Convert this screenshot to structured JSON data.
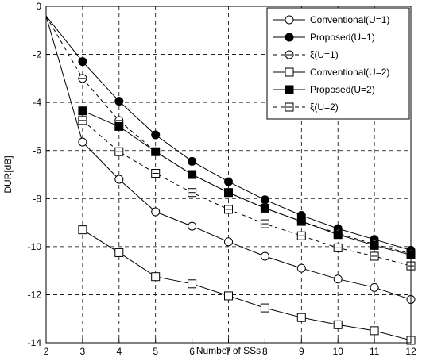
{
  "chart_data": {
    "type": "line",
    "xlabel": "Number of SSs",
    "ylabel": "DUR[dB]",
    "xlim": [
      2,
      12
    ],
    "ylim": [
      -14,
      0
    ],
    "xticks": [
      2,
      3,
      4,
      5,
      6,
      7,
      8,
      9,
      10,
      11,
      12
    ],
    "yticks": [
      0,
      -2,
      -4,
      -6,
      -8,
      -10,
      -12,
      -14
    ],
    "grid": true,
    "grid_style": "dashed",
    "legend_position": "top-right",
    "series": [
      {
        "name": "Conventional(U=1)",
        "line": "solid",
        "marker": "circle",
        "filled": false,
        "x": [
          2,
          3,
          4,
          5,
          6,
          7,
          8,
          9,
          10,
          11,
          12
        ],
        "y": [
          -0.4,
          -5.65,
          -7.2,
          -8.55,
          -9.15,
          -9.8,
          -10.4,
          -10.9,
          -11.35,
          -11.7,
          -12.2
        ]
      },
      {
        "name": "Proposed(U=1)",
        "line": "solid",
        "marker": "circle",
        "filled": true,
        "x": [
          2,
          3,
          4,
          5,
          6,
          7,
          8,
          9,
          10,
          11,
          12
        ],
        "y": [
          -0.4,
          -2.3,
          -3.95,
          -5.35,
          -6.45,
          -7.3,
          -8.05,
          -8.7,
          -9.25,
          -9.7,
          -10.15
        ]
      },
      {
        "name": "ξ(U=1)",
        "line": "dashed",
        "marker": "circle-dash",
        "filled": false,
        "x": [
          2,
          3,
          4,
          5,
          6,
          7,
          8,
          9,
          10,
          11,
          12
        ],
        "y": [
          -0.4,
          -3.0,
          -4.75,
          -6.05,
          -7.0,
          -7.75,
          -8.4,
          -8.95,
          -9.45,
          -9.9,
          -10.3
        ]
      },
      {
        "name": "Conventional(U=2)",
        "line": "solid",
        "marker": "square",
        "filled": false,
        "x": [
          3,
          4,
          5,
          6,
          7,
          8,
          9,
          10,
          11,
          12
        ],
        "y": [
          -9.3,
          -10.25,
          -11.25,
          -11.55,
          -12.05,
          -12.55,
          -12.95,
          -13.25,
          -13.5,
          -13.9
        ]
      },
      {
        "name": "Proposed(U=2)",
        "line": "solid",
        "marker": "square",
        "filled": true,
        "x": [
          3,
          4,
          5,
          6,
          7,
          8,
          9,
          10,
          11,
          12
        ],
        "y": [
          -4.35,
          -5.0,
          -6.05,
          -7.0,
          -7.75,
          -8.4,
          -8.95,
          -9.5,
          -9.95,
          -10.35
        ]
      },
      {
        "name": "ξ(U=2)",
        "line": "dashed",
        "marker": "square-dash",
        "filled": false,
        "x": [
          3,
          4,
          5,
          6,
          7,
          8,
          9,
          10,
          11,
          12
        ],
        "y": [
          -4.75,
          -6.05,
          -6.95,
          -7.75,
          -8.45,
          -9.05,
          -9.55,
          -10.05,
          -10.4,
          -10.8
        ]
      }
    ]
  }
}
